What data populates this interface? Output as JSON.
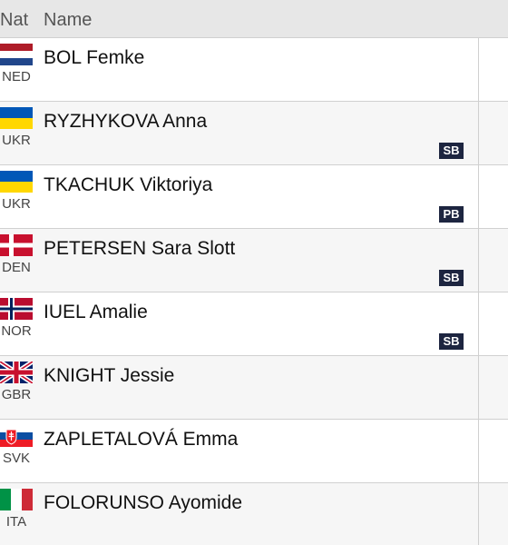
{
  "header": {
    "nat": "Nat",
    "name": "Name"
  },
  "rows": [
    {
      "nat": "NED",
      "name": "BOL Femke"
    },
    {
      "nat": "UKR",
      "name": "RYZHYKOVA Anna",
      "badge": "SB"
    },
    {
      "nat": "UKR",
      "name": "TKACHUK Viktoriya",
      "badge": "PB"
    },
    {
      "nat": "DEN",
      "name": "PETERSEN Sara Slott",
      "badge": "SB"
    },
    {
      "nat": "NOR",
      "name": "IUEL Amalie",
      "badge": "SB"
    },
    {
      "nat": "GBR",
      "name": "KNIGHT Jessie"
    },
    {
      "nat": "SVK",
      "name": "ZAPLETALOVÁ Emma"
    },
    {
      "nat": "ITA",
      "name": "FOLORUNSO Ayomide"
    }
  ]
}
